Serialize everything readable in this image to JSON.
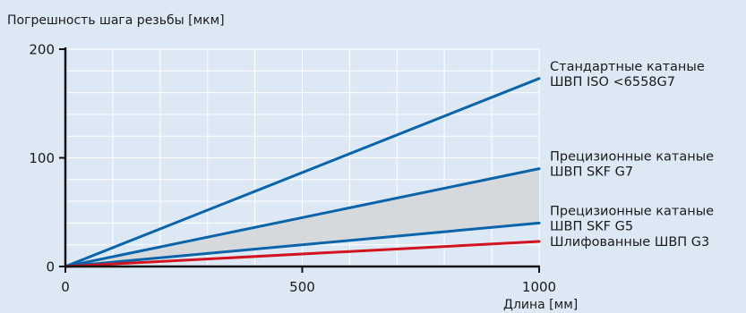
{
  "chart_data": {
    "type": "line",
    "ylabel": "Погрешность шага резьбы [мкм]",
    "xlabel": "Длина [мм]",
    "xlim": [
      0,
      1000
    ],
    "ylim": [
      0,
      200
    ],
    "x_ticks": [
      "0",
      "500",
      "1000"
    ],
    "y_ticks": [
      "0",
      "100",
      "200"
    ],
    "grid": true,
    "colors": {
      "blue": "#0a64aa",
      "red": "#d2141e",
      "band": "#d6d9dc",
      "grid": "#ffffff",
      "background": "#dce9f5"
    },
    "series": [
      {
        "name": "Стандартные катаные ШВП ISO <6558G7",
        "label_lines": [
          "Стандартные катаные",
          "ШВП ISO <6558G7"
        ],
        "color": "blue",
        "x": [
          0,
          1000
        ],
        "y": [
          0,
          173
        ]
      },
      {
        "name": "Прецизионные катаные ШВП SKF G7",
        "label_lines": [
          "Прецизионные катаные",
          "ШВП SKF G7"
        ],
        "color": "blue",
        "x": [
          0,
          1000
        ],
        "y": [
          0,
          90
        ]
      },
      {
        "name": "Прецизионные катаные ШВП SKF G5",
        "label_lines": [
          "Прецизионные катаные",
          "ШВП SKF G5"
        ],
        "color": "blue",
        "x": [
          0,
          1000
        ],
        "y": [
          0,
          40
        ]
      },
      {
        "name": "Шлифованные ШВП G3",
        "label_lines": [
          "Шлифованные ШВП G3"
        ],
        "color": "red",
        "x": [
          0,
          1000
        ],
        "y": [
          0,
          23
        ]
      }
    ],
    "shaded_band": {
      "between": [
        "Прецизионные катаные ШВП SKF G5",
        "Прецизионные катаные ШВП SKF G7"
      ],
      "color": "band"
    }
  }
}
